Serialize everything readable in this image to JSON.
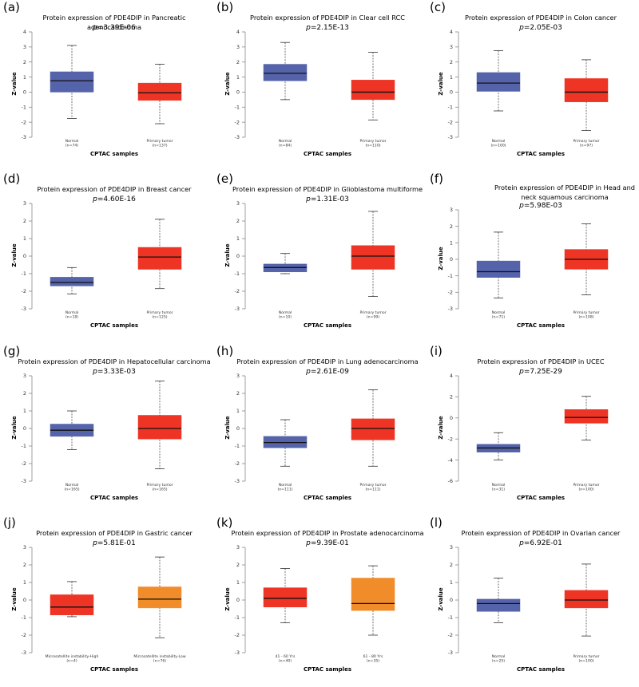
{
  "colors": {
    "normal": "#5563aa",
    "tumor": "#ee3424",
    "orange": "#f08c2a"
  },
  "chart_data": [
    {
      "type": "box",
      "label": "(a)",
      "title": "Protein expression of PDE4DIP in Pancreatic adenocarcinoma",
      "p_prefix": "p",
      "p_value": "=3.39E-06",
      "ylabel": "Z-value",
      "xlabel": "CPTAC samples",
      "ylim": [
        -3,
        4
      ],
      "yticks": [
        "4",
        "3",
        "2",
        "1",
        "0",
        "-1",
        "-2",
        "-3"
      ],
      "ytick_values": [
        4,
        3,
        2,
        1,
        0,
        -1,
        -2,
        -3
      ],
      "groups": [
        {
          "name": "Normal",
          "n": "(n=74)",
          "color": "#5563aa",
          "min": -1.75,
          "q1": 0.0,
          "median": 0.75,
          "q3": 1.35,
          "max": 3.1
        },
        {
          "name": "Primary tumor",
          "n": "(n=137)",
          "color": "#ee3424",
          "min": -2.1,
          "q1": -0.55,
          "median": -0.05,
          "q3": 0.6,
          "max": 1.85
        }
      ]
    },
    {
      "type": "box",
      "label": "(b)",
      "title": "Protein expression of PDE4DIP in Clear cell RCC",
      "p_prefix": "p",
      "p_value": "=2.15E-13",
      "ylabel": "Z-value",
      "xlabel": "CPTAC samples",
      "ylim": [
        -3,
        4
      ],
      "yticks": [
        "4",
        "3",
        "2",
        "1",
        "0",
        "-1",
        "-2",
        "-3"
      ],
      "ytick_values": [
        4,
        3,
        2,
        1,
        0,
        -1,
        -2,
        -3
      ],
      "groups": [
        {
          "name": "Normal",
          "n": "(n=84)",
          "color": "#5563aa",
          "min": -0.5,
          "q1": 0.75,
          "median": 1.25,
          "q3": 1.85,
          "max": 3.3
        },
        {
          "name": "Primary tumor",
          "n": "(n=110)",
          "color": "#ee3424",
          "min": -1.85,
          "q1": -0.5,
          "median": 0.0,
          "q3": 0.8,
          "max": 2.65
        }
      ]
    },
    {
      "type": "box",
      "label": "(c)",
      "title": "Protein expression of PDE4DIP in Colon cancer",
      "p_prefix": "p",
      "p_value": "=2.05E-03",
      "ylabel": "Z-value",
      "xlabel": "CPTAC samples",
      "ylim": [
        -3,
        4
      ],
      "yticks": [
        "4",
        "3",
        "2",
        "1",
        "0",
        "-1",
        "-2",
        "-3"
      ],
      "ytick_values": [
        4,
        3,
        2,
        1,
        0,
        -1,
        -2,
        -3
      ],
      "groups": [
        {
          "name": "Normal",
          "n": "(n=100)",
          "color": "#5563aa",
          "min": -1.25,
          "q1": 0.05,
          "median": 0.6,
          "q3": 1.3,
          "max": 2.75
        },
        {
          "name": "Primary tumor",
          "n": "(n=97)",
          "color": "#ee3424",
          "min": -2.55,
          "q1": -0.65,
          "median": 0.0,
          "q3": 0.9,
          "max": 2.15
        }
      ]
    },
    {
      "type": "box",
      "label": "(d)",
      "title": "Protein expression of PDE4DIP in Breast cancer",
      "p_prefix": "p",
      "p_value": "=4.60E-16",
      "ylabel": "Z-value",
      "xlabel": "CPTAC samples",
      "ylim": [
        -3,
        3
      ],
      "yticks": [
        "3",
        "2",
        "1",
        "0",
        "-1",
        "-2",
        "-3"
      ],
      "ytick_values": [
        3,
        2,
        1,
        0,
        -1,
        -2,
        -3
      ],
      "groups": [
        {
          "name": "Normal",
          "n": "(n=18)",
          "color": "#5563aa",
          "min": -2.15,
          "q1": -1.7,
          "median": -1.5,
          "q3": -1.2,
          "max": -0.65
        },
        {
          "name": "Primary tumor",
          "n": "(n=125)",
          "color": "#ee3424",
          "min": -1.85,
          "q1": -0.75,
          "median": -0.05,
          "q3": 0.5,
          "max": 2.1
        }
      ]
    },
    {
      "type": "box",
      "label": "(e)",
      "title": "Protein expression of PDE4DIP in Glioblastoma multiforme",
      "p_prefix": "p",
      "p_value": "=1.31E-03",
      "ylabel": "Z-value",
      "xlabel": "CPTAC samples",
      "ylim": [
        -3,
        3
      ],
      "yticks": [
        "3",
        "2",
        "1",
        "0",
        "-1",
        "-2",
        "-3"
      ],
      "ytick_values": [
        3,
        2,
        1,
        0,
        -1,
        -2,
        -3
      ],
      "groups": [
        {
          "name": "Normal",
          "n": "(n=10)",
          "color": "#5563aa",
          "min": -1.0,
          "q1": -0.9,
          "median": -0.65,
          "q3": -0.45,
          "max": 0.15
        },
        {
          "name": "Primary tumor",
          "n": "(n=99)",
          "color": "#ee3424",
          "min": -2.3,
          "q1": -0.75,
          "median": 0.0,
          "q3": 0.6,
          "max": 2.55
        }
      ]
    },
    {
      "type": "box",
      "label": "(f)",
      "title": "Protein expression of PDE4DIP in Head and neck squamous carcinoma",
      "p_prefix": "p",
      "p_value": "=5.98E-03",
      "ylabel": "Z-value",
      "xlabel": "CPTAC samples",
      "ylim": [
        -3,
        3
      ],
      "yticks": [
        "3",
        "2",
        "1",
        "0",
        "-1",
        "-2",
        "-3"
      ],
      "ytick_values": [
        3,
        2,
        1,
        0,
        -1,
        -2,
        -3
      ],
      "groups": [
        {
          "name": "Normal",
          "n": "(n=71)",
          "color": "#5563aa",
          "min": -2.35,
          "q1": -1.1,
          "median": -0.75,
          "q3": -0.1,
          "max": 1.65
        },
        {
          "name": "Primary tumor",
          "n": "(n=108)",
          "color": "#ee3424",
          "min": -2.15,
          "q1": -0.6,
          "median": 0.0,
          "q3": 0.6,
          "max": 2.15
        }
      ]
    },
    {
      "type": "box",
      "label": "(g)",
      "title": "Protein expression of PDE4DIP in Hepatocellular carcinoma",
      "p_prefix": "p",
      "p_value": "=3.33E-03",
      "ylabel": "Z-value",
      "xlabel": "CPTAC samples",
      "ylim": [
        -3,
        3
      ],
      "yticks": [
        "3",
        "2",
        "1",
        "0",
        "-1",
        "-2",
        "-3"
      ],
      "ytick_values": [
        3,
        2,
        1,
        0,
        -1,
        -2,
        -3
      ],
      "groups": [
        {
          "name": "Normal",
          "n": "(n=165)",
          "color": "#5563aa",
          "min": -1.2,
          "q1": -0.45,
          "median": -0.1,
          "q3": 0.25,
          "max": 1.0
        },
        {
          "name": "Primary tumor",
          "n": "(n=165)",
          "color": "#ee3424",
          "min": -2.3,
          "q1": -0.6,
          "median": 0.0,
          "q3": 0.75,
          "max": 2.7
        }
      ]
    },
    {
      "type": "box",
      "label": "(h)",
      "title": "Protein expression of PDE4DIP in Lung adenocarcinoma",
      "p_prefix": "p",
      "p_value": "=2.61E-09",
      "ylabel": "Z-value",
      "xlabel": "CPTAC samples",
      "ylim": [
        -3,
        3
      ],
      "yticks": [
        "3",
        "2",
        "1",
        "0",
        "-1",
        "-2",
        "-3"
      ],
      "ytick_values": [
        3,
        2,
        1,
        0,
        -1,
        -2,
        -3
      ],
      "groups": [
        {
          "name": "Normal",
          "n": "(n=111)",
          "color": "#5563aa",
          "min": -2.15,
          "q1": -1.1,
          "median": -0.8,
          "q3": -0.45,
          "max": 0.5
        },
        {
          "name": "Primary tumor",
          "n": "(n=111)",
          "color": "#ee3424",
          "min": -2.15,
          "q1": -0.65,
          "median": 0.0,
          "q3": 0.55,
          "max": 2.2
        }
      ]
    },
    {
      "type": "box",
      "label": "(i)",
      "title": "Protein expression of PDE4DIP in UCEC",
      "p_prefix": "p",
      "p_value": "=7.25E-29",
      "ylabel": "Z-value",
      "xlabel": "CPTAC samples",
      "ylim": [
        -6,
        4
      ],
      "yticks": [
        "4",
        "2",
        "0",
        "-2",
        "-4",
        "-6"
      ],
      "ytick_values": [
        4,
        2,
        0,
        -2,
        -4,
        -6
      ],
      "groups": [
        {
          "name": "Normal",
          "n": "(n=31)",
          "color": "#5563aa",
          "min": -4.0,
          "q1": -3.25,
          "median": -2.85,
          "q3": -2.5,
          "max": -1.4
        },
        {
          "name": "Primary tumor",
          "n": "(n=100)",
          "color": "#ee3424",
          "min": -2.1,
          "q1": -0.5,
          "median": 0.05,
          "q3": 0.8,
          "max": 2.05
        }
      ]
    },
    {
      "type": "box",
      "label": "(j)",
      "title": "Protein expression of PDE4DIP in Gastric cancer",
      "p_prefix": "p",
      "p_value": "=5.81E-01",
      "ylabel": "Z-value",
      "xlabel": "CPTAC samples",
      "ylim": [
        -3,
        3
      ],
      "yticks": [
        "3",
        "2",
        "1",
        "0",
        "-1",
        "-2",
        "-3"
      ],
      "ytick_values": [
        3,
        2,
        1,
        0,
        -1,
        -2,
        -3
      ],
      "groups": [
        {
          "name": "Microsatellite instability-High",
          "n": "(n=4)",
          "color": "#ee3424",
          "min": -0.95,
          "q1": -0.85,
          "median": -0.4,
          "q3": 0.3,
          "max": 1.05
        },
        {
          "name": "Microsatellite instability-Low",
          "n": "(n=76)",
          "color": "#f08c2a",
          "min": -2.15,
          "q1": -0.45,
          "median": 0.05,
          "q3": 0.75,
          "max": 2.45
        }
      ]
    },
    {
      "type": "box",
      "label": "(k)",
      "title": "Protein expression of PDE4DIP in Prostate adenocarcinoma",
      "p_prefix": "p",
      "p_value": "=9.39E-01",
      "ylabel": "Z-value",
      "xlabel": "CPTAC samples",
      "ylim": [
        -3,
        3
      ],
      "yticks": [
        "3",
        "2",
        "1",
        "0",
        "-1",
        "-2",
        "-3"
      ],
      "ytick_values": [
        3,
        2,
        1,
        0,
        -1,
        -2,
        -3
      ],
      "groups": [
        {
          "name": "41 - 60 Yrs",
          "n": "(n=40)",
          "color": "#ee3424",
          "min": -1.3,
          "q1": -0.4,
          "median": 0.1,
          "q3": 0.7,
          "max": 1.8
        },
        {
          "name": "61 - 80 Yrs",
          "n": "(n=35)",
          "color": "#f08c2a",
          "min": -2.0,
          "q1": -0.6,
          "median": -0.2,
          "q3": 1.25,
          "max": 1.95
        }
      ]
    },
    {
      "type": "box",
      "label": "(l)",
      "title": "Protein expression of PDE4DIP in Ovarian cancer",
      "p_prefix": "p",
      "p_value": "=6.92E-01",
      "ylabel": "Z-value",
      "xlabel": "CPTAC samples",
      "ylim": [
        -3,
        3
      ],
      "yticks": [
        "3",
        "2",
        "1",
        "0",
        "-1",
        "-2",
        "-3"
      ],
      "ytick_values": [
        3,
        2,
        1,
        0,
        -1,
        -2,
        -3
      ],
      "groups": [
        {
          "name": "Normal",
          "n": "(n=25)",
          "color": "#5563aa",
          "min": -1.3,
          "q1": -0.65,
          "median": -0.2,
          "q3": 0.05,
          "max": 1.25
        },
        {
          "name": "Primary tumor",
          "n": "(n=100)",
          "color": "#ee3424",
          "min": -2.05,
          "q1": -0.45,
          "median": 0.0,
          "q3": 0.55,
          "max": 2.05
        }
      ]
    }
  ]
}
